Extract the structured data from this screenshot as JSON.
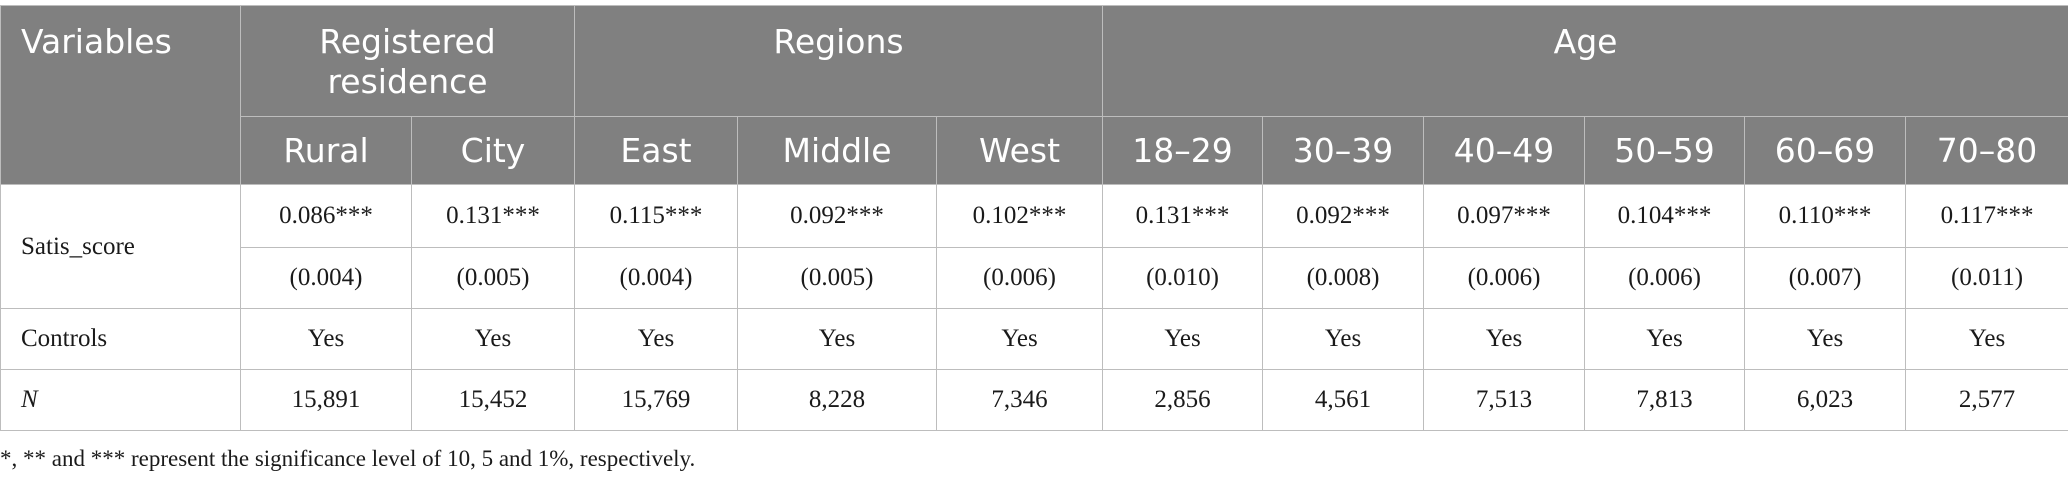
{
  "table": {
    "header": {
      "variables": "Variables",
      "groups": [
        "Registered residence",
        "Regions",
        "Age"
      ],
      "columns": [
        "Rural",
        "City",
        "East",
        "Middle",
        "West",
        "18–29",
        "30–39",
        "40–49",
        "50–59",
        "60–69",
        "70–80"
      ]
    },
    "rows": {
      "satis": {
        "label": "Satis_score",
        "coef": [
          "0.086***",
          "0.131***",
          "0.115***",
          "0.092***",
          "0.102***",
          "0.131***",
          "0.092***",
          "0.097***",
          "0.104***",
          "0.110***",
          "0.117***"
        ],
        "se": [
          "(0.004)",
          "(0.005)",
          "(0.004)",
          "(0.005)",
          "(0.006)",
          "(0.010)",
          "(0.008)",
          "(0.006)",
          "(0.006)",
          "(0.007)",
          "(0.011)"
        ]
      },
      "controls": {
        "label": "Controls",
        "values": [
          "Yes",
          "Yes",
          "Yes",
          "Yes",
          "Yes",
          "Yes",
          "Yes",
          "Yes",
          "Yes",
          "Yes",
          "Yes"
        ]
      },
      "n": {
        "label": "N",
        "values": [
          "15,891",
          "15,452",
          "15,769",
          "8,228",
          "7,346",
          "2,856",
          "4,561",
          "7,513",
          "7,813",
          "6,023",
          "2,577"
        ]
      }
    },
    "note": "*, ** and *** represent the significance level of 10, 5 and 1%, respectively."
  }
}
